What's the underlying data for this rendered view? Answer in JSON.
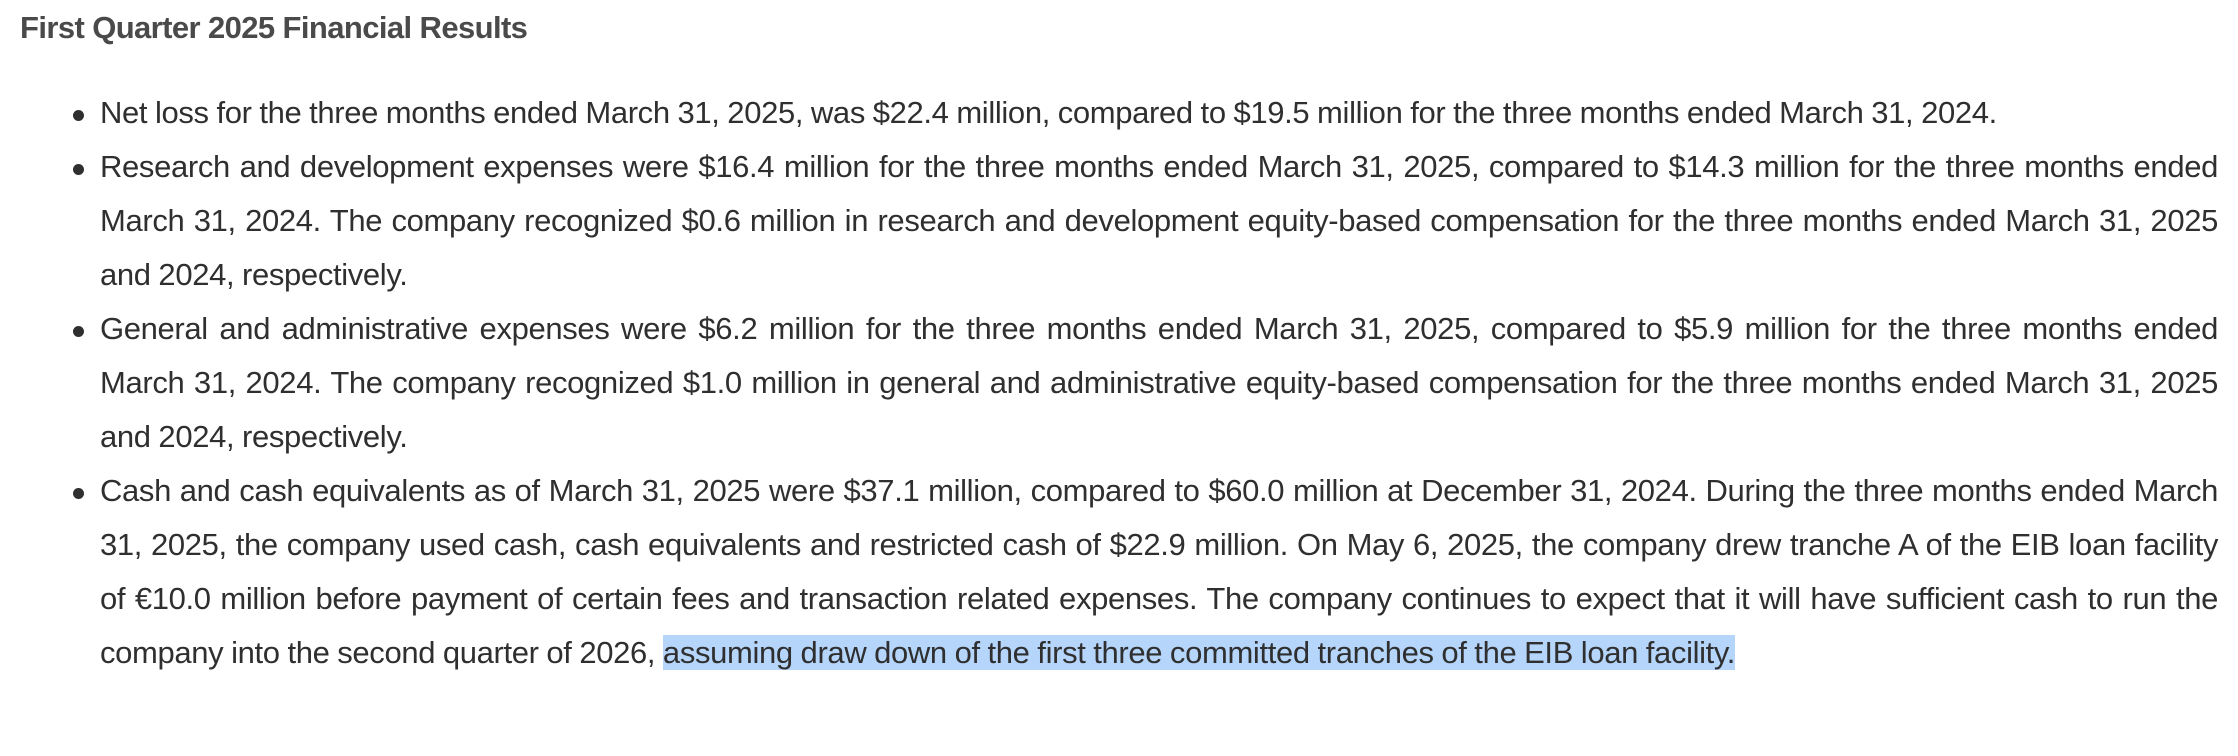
{
  "heading": "First Quarter 2025 Financial Results",
  "bullets": [
    {
      "text": "Net loss for the three months ended March 31, 2025, was $22.4 million, compared to $19.5 million for the three months ended March 31, 2024."
    },
    {
      "text": "Research and development expenses were $16.4 million for the three months ended March 31, 2025, compared to $14.3 million for the three months ended March 31, 2024. The company recognized $0.6 million in research and development equity-based compensation for the three months ended March 31, 2025 and 2024, respectively."
    },
    {
      "text": "General and administrative expenses were $6.2 million for the three months ended March 31, 2025, compared to $5.9 million for the three months ended March 31, 2024. The company recognized $1.0 million in general and administrative equity-based compensation for the three months ended March 31, 2025 and 2024, respectively."
    },
    {
      "text": "Cash and cash equivalents as of March 31, 2025 were $37.1 million, compared to $60.0 million at December 31, 2024. During the three months ended March 31, 2025, the company used cash, cash equivalents and restricted cash of $22.9 million. On May 6, 2025, the company drew tranche A of the EIB loan facility of €10.0 million before payment of certain fees and transaction related expenses. The company continues to expect that it will have sufficient cash to run the company into the second quarter of 2026, ",
      "highlighted": "assuming draw down of the first three committed tranches of the EIB loan facility."
    }
  ],
  "colors": {
    "selection_highlight": "#b5d5fb",
    "text": "#2f2f2f",
    "heading": "#4a4a4a"
  }
}
